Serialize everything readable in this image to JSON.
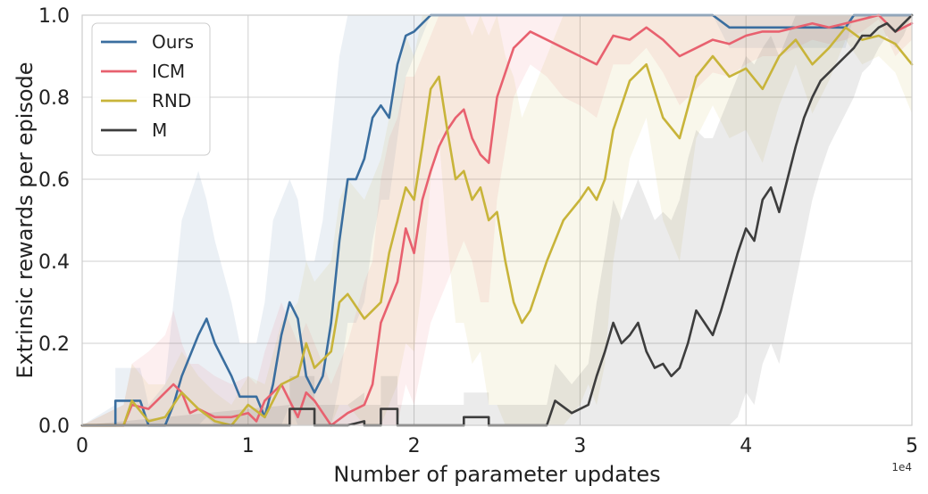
{
  "chart_data": {
    "type": "line",
    "title": "",
    "xlabel": "Number of parameter updates",
    "ylabel": "Extrinsic rewards per episode",
    "x_offset_label": "1e4",
    "xlim": [
      0,
      5
    ],
    "ylim": [
      0,
      1
    ],
    "xticks": [
      0,
      1,
      2,
      3,
      4,
      5
    ],
    "xtick_labels": [
      "0",
      "1",
      "2",
      "3",
      "4",
      "5"
    ],
    "yticks": [
      0,
      0.2,
      0.4,
      0.6,
      0.8,
      1.0
    ],
    "ytick_labels": [
      "0.0",
      "0.2",
      "0.4",
      "0.6",
      "0.8",
      "1.0"
    ],
    "grid": true,
    "legend_position": "top-left",
    "series": [
      {
        "name": "Ours",
        "color": "#3a6e9f",
        "x": [
          0,
          0.2,
          0.2,
          0.35,
          0.4,
          0.5,
          0.55,
          0.6,
          0.7,
          0.75,
          0.8,
          0.9,
          0.95,
          1.0,
          1.05,
          1.1,
          1.15,
          1.2,
          1.25,
          1.3,
          1.35,
          1.4,
          1.45,
          1.5,
          1.55,
          1.6,
          1.65,
          1.7,
          1.75,
          1.8,
          1.85,
          1.9,
          1.95,
          2.0,
          2.05,
          2.1,
          2.2,
          3.8,
          3.9,
          4.6,
          4.65,
          4.7,
          5.0
        ],
        "y": [
          0,
          0,
          0.06,
          0.06,
          0,
          0,
          0.05,
          0.12,
          0.22,
          0.26,
          0.2,
          0.12,
          0.07,
          0.07,
          0.07,
          0.02,
          0.1,
          0.22,
          0.3,
          0.26,
          0.12,
          0.08,
          0.12,
          0.25,
          0.45,
          0.6,
          0.6,
          0.65,
          0.75,
          0.78,
          0.75,
          0.88,
          0.95,
          0.96,
          0.98,
          1.0,
          1.0,
          1.0,
          0.97,
          0.97,
          1.0,
          1.0,
          1.0
        ],
        "band_upper": [
          0,
          0.05,
          0.14,
          0.14,
          0.05,
          0.1,
          0.3,
          0.5,
          0.62,
          0.55,
          0.45,
          0.3,
          0.2,
          0.2,
          0.2,
          0.3,
          0.5,
          0.55,
          0.6,
          0.55,
          0.4,
          0.4,
          0.5,
          0.7,
          0.9,
          1.0,
          1.0,
          1.0,
          1.0,
          1.0,
          1.0,
          1.0,
          1.0,
          1.0,
          1.0,
          1.0,
          1.0,
          1.0,
          1.0,
          1.0,
          1.0,
          1.0,
          1.0
        ],
        "band_lower": [
          0,
          0,
          0,
          0,
          0,
          0,
          0,
          0,
          0,
          0.02,
          0,
          0,
          0,
          0,
          0,
          0,
          0,
          0,
          0.05,
          0,
          0,
          0,
          0,
          0,
          0.1,
          0.25,
          0.25,
          0.3,
          0.45,
          0.55,
          0.55,
          0.7,
          0.85,
          0.9,
          0.95,
          1.0,
          1.0,
          1.0,
          0.92,
          0.92,
          1.0,
          1.0,
          1.0
        ]
      },
      {
        "name": "ICM",
        "color": "#e8616f",
        "x": [
          0,
          0.25,
          0.3,
          0.4,
          0.45,
          0.5,
          0.55,
          0.6,
          0.65,
          0.7,
          0.8,
          0.9,
          1.0,
          1.05,
          1.1,
          1.2,
          1.3,
          1.35,
          1.4,
          1.5,
          1.6,
          1.7,
          1.75,
          1.8,
          1.85,
          1.9,
          1.95,
          2.0,
          2.05,
          2.1,
          2.15,
          2.2,
          2.25,
          2.3,
          2.35,
          2.4,
          2.45,
          2.5,
          2.6,
          2.7,
          2.8,
          2.9,
          3.0,
          3.1,
          3.2,
          3.3,
          3.4,
          3.5,
          3.6,
          3.7,
          3.8,
          3.9,
          4.0,
          4.1,
          4.2,
          4.3,
          4.4,
          4.5,
          4.6,
          4.7,
          4.8,
          4.9,
          5.0
        ],
        "y": [
          0,
          0,
          0.05,
          0.04,
          0.06,
          0.08,
          0.1,
          0.08,
          0.03,
          0.04,
          0.02,
          0.02,
          0.03,
          0.01,
          0.06,
          0.1,
          0.02,
          0.08,
          0.06,
          0,
          0.03,
          0.05,
          0.1,
          0.25,
          0.3,
          0.35,
          0.48,
          0.42,
          0.55,
          0.62,
          0.68,
          0.72,
          0.75,
          0.77,
          0.7,
          0.66,
          0.64,
          0.8,
          0.92,
          0.96,
          0.94,
          0.92,
          0.9,
          0.88,
          0.95,
          0.94,
          0.97,
          0.94,
          0.9,
          0.92,
          0.94,
          0.93,
          0.95,
          0.96,
          0.96,
          0.97,
          0.98,
          0.97,
          0.98,
          0.99,
          1.0,
          0.96,
          0.98
        ],
        "band_upper": [
          0,
          0.05,
          0.15,
          0.18,
          0.2,
          0.22,
          0.28,
          0.2,
          0.15,
          0.15,
          0.12,
          0.1,
          0.12,
          0.1,
          0.18,
          0.3,
          0.2,
          0.25,
          0.2,
          0.1,
          0.2,
          0.35,
          0.4,
          0.6,
          0.7,
          0.75,
          0.85,
          0.85,
          0.9,
          0.95,
          1.0,
          1.0,
          1.0,
          1.0,
          1.0,
          1.0,
          1.0,
          1.0,
          1.0,
          1.0,
          1.0,
          1.0,
          1.0,
          1.0,
          1.0,
          1.0,
          1.0,
          1.0,
          1.0,
          1.0,
          1.0,
          1.0,
          1.0,
          1.0,
          1.0,
          1.0,
          1.0,
          1.0,
          1.0,
          1.0,
          1.0,
          1.0,
          1.0
        ],
        "band_lower": [
          0,
          0,
          0,
          0,
          0,
          0,
          0,
          0,
          0,
          0,
          0,
          0,
          0,
          0,
          0,
          0,
          0,
          0,
          0,
          0,
          0,
          0,
          0,
          0,
          0,
          0,
          0.1,
          0.05,
          0.15,
          0.25,
          0.3,
          0.35,
          0.4,
          0.45,
          0.4,
          0.3,
          0.3,
          0.55,
          0.8,
          0.88,
          0.85,
          0.8,
          0.78,
          0.75,
          0.88,
          0.88,
          0.92,
          0.86,
          0.78,
          0.82,
          0.86,
          0.85,
          0.88,
          0.9,
          0.9,
          0.92,
          0.94,
          0.93,
          0.94,
          0.96,
          0.99,
          0.9,
          0.94
        ]
      },
      {
        "name": "RND",
        "color": "#c8b43a",
        "x": [
          0,
          0.25,
          0.3,
          0.4,
          0.5,
          0.6,
          0.7,
          0.8,
          0.9,
          1.0,
          1.1,
          1.2,
          1.3,
          1.35,
          1.4,
          1.5,
          1.55,
          1.6,
          1.7,
          1.8,
          1.85,
          1.9,
          1.95,
          2.0,
          2.05,
          2.1,
          2.15,
          2.2,
          2.25,
          2.3,
          2.35,
          2.4,
          2.45,
          2.5,
          2.55,
          2.6,
          2.65,
          2.7,
          2.8,
          2.9,
          3.0,
          3.05,
          3.1,
          3.15,
          3.2,
          3.3,
          3.4,
          3.5,
          3.6,
          3.7,
          3.8,
          3.9,
          4.0,
          4.1,
          4.2,
          4.3,
          4.4,
          4.5,
          4.6,
          4.7,
          4.8,
          4.9,
          5.0
        ],
        "y": [
          0,
          0,
          0.06,
          0.01,
          0.02,
          0.08,
          0.04,
          0.01,
          0.0,
          0.05,
          0.02,
          0.1,
          0.12,
          0.2,
          0.14,
          0.18,
          0.3,
          0.32,
          0.26,
          0.3,
          0.42,
          0.5,
          0.58,
          0.55,
          0.68,
          0.82,
          0.85,
          0.72,
          0.6,
          0.62,
          0.55,
          0.58,
          0.5,
          0.52,
          0.4,
          0.3,
          0.25,
          0.28,
          0.4,
          0.5,
          0.55,
          0.58,
          0.55,
          0.6,
          0.72,
          0.84,
          0.88,
          0.75,
          0.7,
          0.85,
          0.9,
          0.85,
          0.87,
          0.82,
          0.9,
          0.94,
          0.88,
          0.92,
          0.97,
          0.94,
          0.95,
          0.93,
          0.88
        ],
        "band_upper": [
          0,
          0.05,
          0.15,
          0.1,
          0.1,
          0.18,
          0.12,
          0.08,
          0.05,
          0.12,
          0.1,
          0.25,
          0.3,
          0.4,
          0.35,
          0.4,
          0.55,
          0.6,
          0.55,
          0.65,
          0.75,
          0.85,
          0.95,
          0.9,
          1.0,
          1.0,
          1.0,
          1.0,
          1.0,
          1.0,
          0.95,
          1.0,
          0.95,
          1.0,
          0.9,
          0.85,
          0.75,
          0.8,
          0.9,
          1.0,
          1.0,
          1.0,
          1.0,
          1.0,
          1.0,
          1.0,
          1.0,
          1.0,
          1.0,
          1.0,
          1.0,
          1.0,
          1.0,
          1.0,
          1.0,
          1.0,
          1.0,
          1.0,
          1.0,
          1.0,
          1.0,
          1.0,
          1.0
        ],
        "band_lower": [
          0,
          0,
          0,
          0,
          0,
          0,
          0,
          0,
          0,
          0,
          0,
          0,
          0,
          0,
          0,
          0,
          0.05,
          0.05,
          0,
          0,
          0.05,
          0.1,
          0.2,
          0.18,
          0.35,
          0.6,
          0.7,
          0.45,
          0.25,
          0.25,
          0.15,
          0.18,
          0.05,
          0.05,
          0,
          0,
          0,
          0,
          0,
          0,
          0.05,
          0.1,
          0.05,
          0.15,
          0.4,
          0.65,
          0.75,
          0.5,
          0.4,
          0.7,
          0.78,
          0.7,
          0.72,
          0.64,
          0.78,
          0.88,
          0.76,
          0.84,
          0.94,
          0.88,
          0.9,
          0.86,
          0.76
        ]
      },
      {
        "name": "M",
        "color": "#3d3d3d",
        "x": [
          0,
          1.25,
          1.25,
          1.4,
          1.4,
          1.6,
          1.7,
          1.7,
          1.8,
          1.8,
          1.9,
          1.9,
          2.3,
          2.3,
          2.45,
          2.45,
          2.8,
          2.85,
          2.95,
          3.05,
          3.1,
          3.15,
          3.2,
          3.25,
          3.3,
          3.35,
          3.4,
          3.45,
          3.5,
          3.55,
          3.6,
          3.65,
          3.7,
          3.75,
          3.8,
          3.85,
          3.9,
          3.95,
          4.0,
          4.05,
          4.1,
          4.15,
          4.2,
          4.25,
          4.3,
          4.35,
          4.4,
          4.45,
          4.5,
          4.55,
          4.6,
          4.65,
          4.7,
          4.75,
          4.8,
          4.85,
          4.9,
          4.95,
          5.0
        ],
        "y": [
          0,
          0,
          0.04,
          0.04,
          0,
          0,
          0.01,
          0,
          0,
          0.04,
          0.04,
          0,
          0,
          0.02,
          0.02,
          0,
          0,
          0.06,
          0.03,
          0.05,
          0.12,
          0.18,
          0.25,
          0.2,
          0.22,
          0.25,
          0.18,
          0.14,
          0.15,
          0.12,
          0.14,
          0.2,
          0.28,
          0.25,
          0.22,
          0.28,
          0.35,
          0.42,
          0.48,
          0.45,
          0.55,
          0.58,
          0.52,
          0.6,
          0.68,
          0.75,
          0.8,
          0.84,
          0.86,
          0.88,
          0.9,
          0.92,
          0.95,
          0.95,
          0.97,
          0.98,
          0.96,
          0.98,
          1.0
        ],
        "band_upper": [
          0,
          0.05,
          0.12,
          0.12,
          0.05,
          0.05,
          0.08,
          0.05,
          0.05,
          0.12,
          0.12,
          0.05,
          0.05,
          0.08,
          0.08,
          0.05,
          0.05,
          0.15,
          0.1,
          0.15,
          0.3,
          0.42,
          0.55,
          0.5,
          0.55,
          0.6,
          0.55,
          0.5,
          0.52,
          0.5,
          0.55,
          0.65,
          0.72,
          0.7,
          0.7,
          0.75,
          0.8,
          0.85,
          0.9,
          0.88,
          0.92,
          0.95,
          0.9,
          0.95,
          1.0,
          1.0,
          1.0,
          1.0,
          1.0,
          1.0,
          1.0,
          1.0,
          1.0,
          1.0,
          1.0,
          1.0,
          1.0,
          1.0,
          1.0
        ],
        "band_lower": [
          0,
          0,
          0,
          0,
          0,
          0,
          0,
          0,
          0,
          0,
          0,
          0,
          0,
          0,
          0,
          0,
          0,
          0,
          0,
          0,
          0,
          0,
          0,
          0,
          0,
          0,
          0,
          0,
          0,
          0,
          0,
          0,
          0,
          0,
          0,
          0,
          0,
          0.02,
          0.08,
          0.05,
          0.15,
          0.2,
          0.15,
          0.25,
          0.35,
          0.45,
          0.55,
          0.62,
          0.68,
          0.72,
          0.76,
          0.8,
          0.86,
          0.88,
          0.92,
          0.95,
          0.92,
          0.95,
          1.0
        ]
      }
    ]
  }
}
